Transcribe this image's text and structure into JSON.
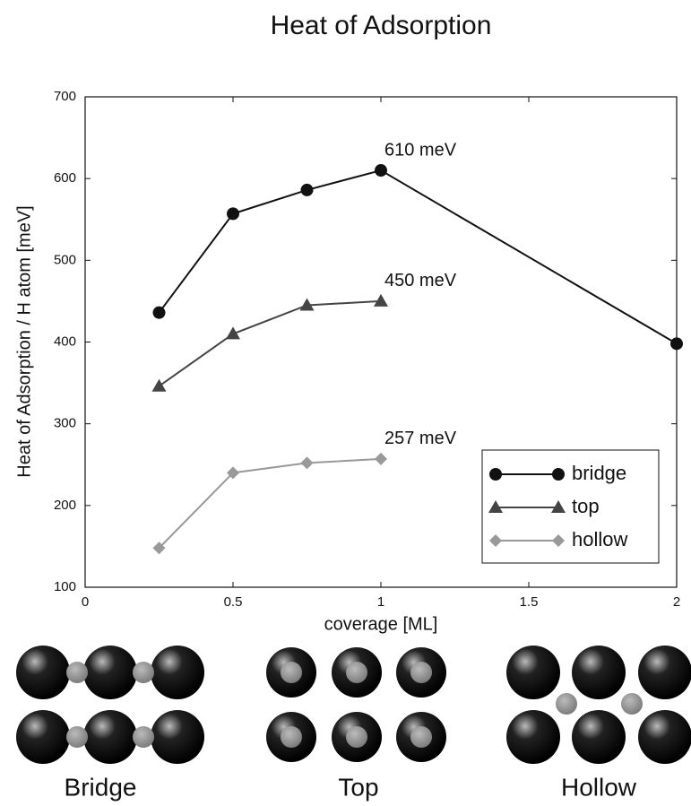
{
  "chart_data": {
    "type": "line",
    "title": "Heat of Adsorption",
    "xlabel": "coverage [ML]",
    "ylabel": "Heat of Adsorption / H atom [meV]",
    "xlim": [
      0,
      2
    ],
    "ylim": [
      100,
      700
    ],
    "xticks": [
      0,
      0.5,
      1,
      1.5,
      2
    ],
    "yticks": [
      100,
      200,
      300,
      400,
      500,
      600,
      700
    ],
    "legend": "lower right",
    "series": [
      {
        "name": "bridge",
        "color": "#111111",
        "marker": "circle",
        "x": [
          0.25,
          0.5,
          0.75,
          1,
          2
        ],
        "values": [
          436,
          557,
          586,
          610,
          398
        ],
        "value_labels": [
          null,
          null,
          null,
          "610 meV",
          null
        ]
      },
      {
        "name": "top",
        "color": "#444444",
        "marker": "triangle",
        "x": [
          0.25,
          0.5,
          0.75,
          1
        ],
        "values": [
          346,
          410,
          445,
          450
        ],
        "value_labels": [
          null,
          null,
          null,
          "450 meV"
        ]
      },
      {
        "name": "hollow",
        "color": "#999999",
        "marker": "diamond",
        "x": [
          0.25,
          0.5,
          0.75,
          1
        ],
        "values": [
          148,
          240,
          252,
          257
        ],
        "value_labels": [
          null,
          null,
          null,
          "257 meV"
        ]
      }
    ]
  },
  "illustrations": {
    "labels": [
      "Bridge",
      "Top",
      "Hollow"
    ]
  }
}
